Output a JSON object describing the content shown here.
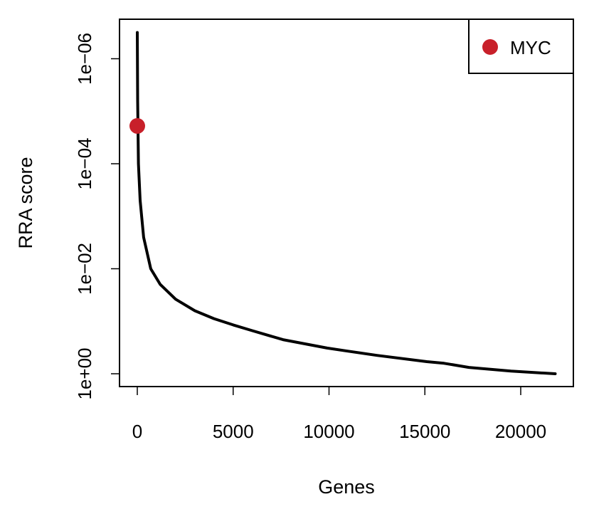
{
  "chart_data": {
    "type": "line",
    "title": "",
    "xlabel": "Genes",
    "ylabel": "RRA score",
    "y_scale": "log10 (reversed)",
    "xlim": [
      -900,
      22700
    ],
    "ylim_neglog10": [
      -0.25,
      6.75
    ],
    "x_ticks": [
      0,
      5000,
      10000,
      15000,
      20000
    ],
    "x_tick_labels": [
      "0",
      "5000",
      "10000",
      "15000",
      "20000"
    ],
    "y_ticks_neglog10": [
      0,
      2,
      4,
      6
    ],
    "y_tick_labels": [
      "1e+00",
      "1e−02",
      "1e−04",
      "1e−06"
    ],
    "series": [
      {
        "name": "RRA score (-log10)",
        "color": "#000000",
        "x": [
          0,
          20,
          60,
          150,
          330,
          700,
          1200,
          2000,
          3000,
          4000,
          5000,
          6000,
          7600,
          9900,
          11000,
          12500,
          15100,
          16000,
          17300,
          19500,
          21800
        ],
        "y": [
          6.5,
          5.2,
          4.0,
          3.3,
          2.6,
          2.0,
          1.7,
          1.42,
          1.2,
          1.05,
          0.93,
          0.82,
          0.65,
          0.49,
          0.43,
          0.35,
          0.23,
          0.2,
          0.12,
          0.05,
          0.0
        ]
      }
    ],
    "highlight": [
      {
        "name": "MYC",
        "x": 0,
        "y": 4.72,
        "color": "#C8202A"
      }
    ],
    "legend": {
      "position": "top-right",
      "entries": [
        "MYC"
      ]
    },
    "grid": false
  }
}
